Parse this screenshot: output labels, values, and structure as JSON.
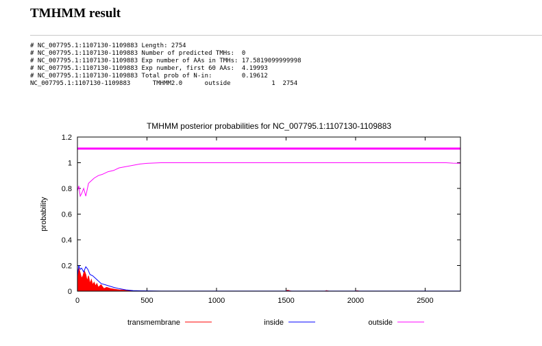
{
  "page": {
    "title": "TMHMM result",
    "summary_lines": [
      "# NC_007795.1:1107130-1109883 Length: 2754",
      "# NC_007795.1:1107130-1109883 Number of predicted TMHs:  0",
      "# NC_007795.1:1107130-1109883 Exp number of AAs in TMHs: 17.5819099999998",
      "# NC_007795.1:1107130-1109883 Exp number, first 60 AAs:  4.19993",
      "# NC_007795.1:1107130-1109883 Total prob of N-in:        0.19612",
      "NC_007795.1:1107130-1109883\tTMHMM2.0\toutside\t     1  2754"
    ]
  },
  "chart_data": {
    "type": "line",
    "title": "TMHMM posterior probabilities for NC_007795.1:1107130-1109883",
    "xlabel": "",
    "ylabel": "probability",
    "xlim": [
      0,
      2754
    ],
    "ylim": [
      0,
      1.2
    ],
    "xticks": [
      0,
      500,
      1000,
      1500,
      2000,
      2500
    ],
    "yticks": [
      0,
      0.2,
      0.4,
      0.6,
      0.8,
      1,
      1.2
    ],
    "legend_position": "bottom",
    "series": [
      {
        "name": "transmembrane",
        "color": "#ff0000",
        "style": "filled",
        "points": [
          [
            0,
            0
          ],
          [
            5,
            0.15
          ],
          [
            10,
            0.18
          ],
          [
            20,
            0.14
          ],
          [
            30,
            0.1
          ],
          [
            40,
            0.12
          ],
          [
            50,
            0.16
          ],
          [
            60,
            0.13
          ],
          [
            70,
            0.08
          ],
          [
            80,
            0.12
          ],
          [
            90,
            0.06
          ],
          [
            100,
            0.09
          ],
          [
            110,
            0.05
          ],
          [
            120,
            0.07
          ],
          [
            130,
            0.04
          ],
          [
            140,
            0.06
          ],
          [
            150,
            0.03
          ],
          [
            170,
            0.05
          ],
          [
            190,
            0.02
          ],
          [
            210,
            0.03
          ],
          [
            240,
            0.02
          ],
          [
            270,
            0.015
          ],
          [
            300,
            0.01
          ],
          [
            350,
            0.008
          ],
          [
            400,
            0.003
          ],
          [
            450,
            0
          ],
          [
            1500,
            0
          ],
          [
            1510,
            0.008
          ],
          [
            1540,
            0
          ],
          [
            1780,
            0
          ],
          [
            1790,
            0.005
          ],
          [
            1810,
            0
          ],
          [
            2000,
            0
          ],
          [
            2010,
            0.004
          ],
          [
            2030,
            0
          ],
          [
            2754,
            0
          ]
        ]
      },
      {
        "name": "inside",
        "color": "#0000ff",
        "style": "line",
        "points": [
          [
            0,
            0.12
          ],
          [
            10,
            0.2
          ],
          [
            20,
            0.17
          ],
          [
            30,
            0.18
          ],
          [
            45,
            0.15
          ],
          [
            60,
            0.19
          ],
          [
            75,
            0.17
          ],
          [
            90,
            0.13
          ],
          [
            110,
            0.12
          ],
          [
            130,
            0.1
          ],
          [
            150,
            0.08
          ],
          [
            170,
            0.06
          ],
          [
            200,
            0.05
          ],
          [
            230,
            0.04
          ],
          [
            260,
            0.03
          ],
          [
            300,
            0.02
          ],
          [
            350,
            0.01
          ],
          [
            400,
            0.005
          ],
          [
            450,
            0.003
          ],
          [
            600,
            0.001
          ],
          [
            2754,
            0.001
          ]
        ]
      },
      {
        "name": "outside",
        "color": "#ff00ff",
        "style": "line",
        "points": [
          [
            0,
            0.78
          ],
          [
            10,
            0.82
          ],
          [
            20,
            0.74
          ],
          [
            30,
            0.76
          ],
          [
            45,
            0.8
          ],
          [
            60,
            0.74
          ],
          [
            80,
            0.84
          ],
          [
            100,
            0.86
          ],
          [
            120,
            0.88
          ],
          [
            150,
            0.9
          ],
          [
            180,
            0.91
          ],
          [
            220,
            0.93
          ],
          [
            260,
            0.94
          ],
          [
            300,
            0.96
          ],
          [
            350,
            0.97
          ],
          [
            400,
            0.98
          ],
          [
            450,
            0.99
          ],
          [
            500,
            0.995
          ],
          [
            600,
            1.0
          ],
          [
            2650,
            1.0
          ],
          [
            2700,
            0.997
          ],
          [
            2754,
            0.995
          ]
        ]
      }
    ],
    "reference_lines": [
      {
        "y": 1.11,
        "color": "#ff00ff"
      }
    ]
  }
}
